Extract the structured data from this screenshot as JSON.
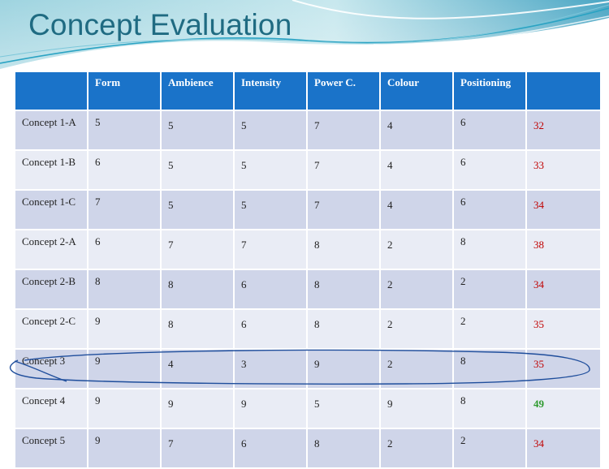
{
  "slide": {
    "title": "Concept Evaluation"
  },
  "colors": {
    "header": "#1a73c9",
    "row_dark": "#cfd5e9",
    "row_light": "#e9ecf5",
    "total_red": "#c00000",
    "total_green": "#2e9a2e",
    "highlight_ellipse": "#1f4e9c"
  },
  "table": {
    "columns": [
      "",
      "Form",
      "Ambience",
      "Intensity",
      "Power C.",
      "Colour",
      "Positioning",
      ""
    ],
    "rows": [
      {
        "concept": "Concept 1-A",
        "values": [
          "5",
          "5",
          "5",
          "7",
          "4",
          "6"
        ],
        "total": "32",
        "total_color": "red"
      },
      {
        "concept": "Concept 1-B",
        "values": [
          "6",
          "5",
          "5",
          "7",
          "4",
          "6"
        ],
        "total": "33",
        "total_color": "red"
      },
      {
        "concept": "Concept 1-C",
        "values": [
          "7",
          "5",
          "5",
          "7",
          "4",
          "6"
        ],
        "total": "34",
        "total_color": "red"
      },
      {
        "concept": "Concept 2-A",
        "values": [
          "6",
          "7",
          "7",
          "8",
          "2",
          "8"
        ],
        "total": "38",
        "total_color": "red"
      },
      {
        "concept": "Concept 2-B",
        "values": [
          "8",
          "8",
          "6",
          "8",
          "2",
          "2"
        ],
        "total": "34",
        "total_color": "red"
      },
      {
        "concept": "Concept 2-C",
        "values": [
          "9",
          "8",
          "6",
          "8",
          "2",
          "2"
        ],
        "total": "35",
        "total_color": "red"
      },
      {
        "concept": "Concept 3",
        "values": [
          "9",
          "4",
          "3",
          "9",
          "2",
          "8"
        ],
        "total": "35",
        "total_color": "red"
      },
      {
        "concept": "Concept 4",
        "values": [
          "9",
          "9",
          "9",
          "5",
          "9",
          "8"
        ],
        "total": "49",
        "total_color": "green"
      },
      {
        "concept": "Concept 5",
        "values": [
          "9",
          "7",
          "6",
          "8",
          "2",
          "2"
        ],
        "total": "34",
        "total_color": "red"
      }
    ],
    "highlighted_row": "Concept 4"
  }
}
